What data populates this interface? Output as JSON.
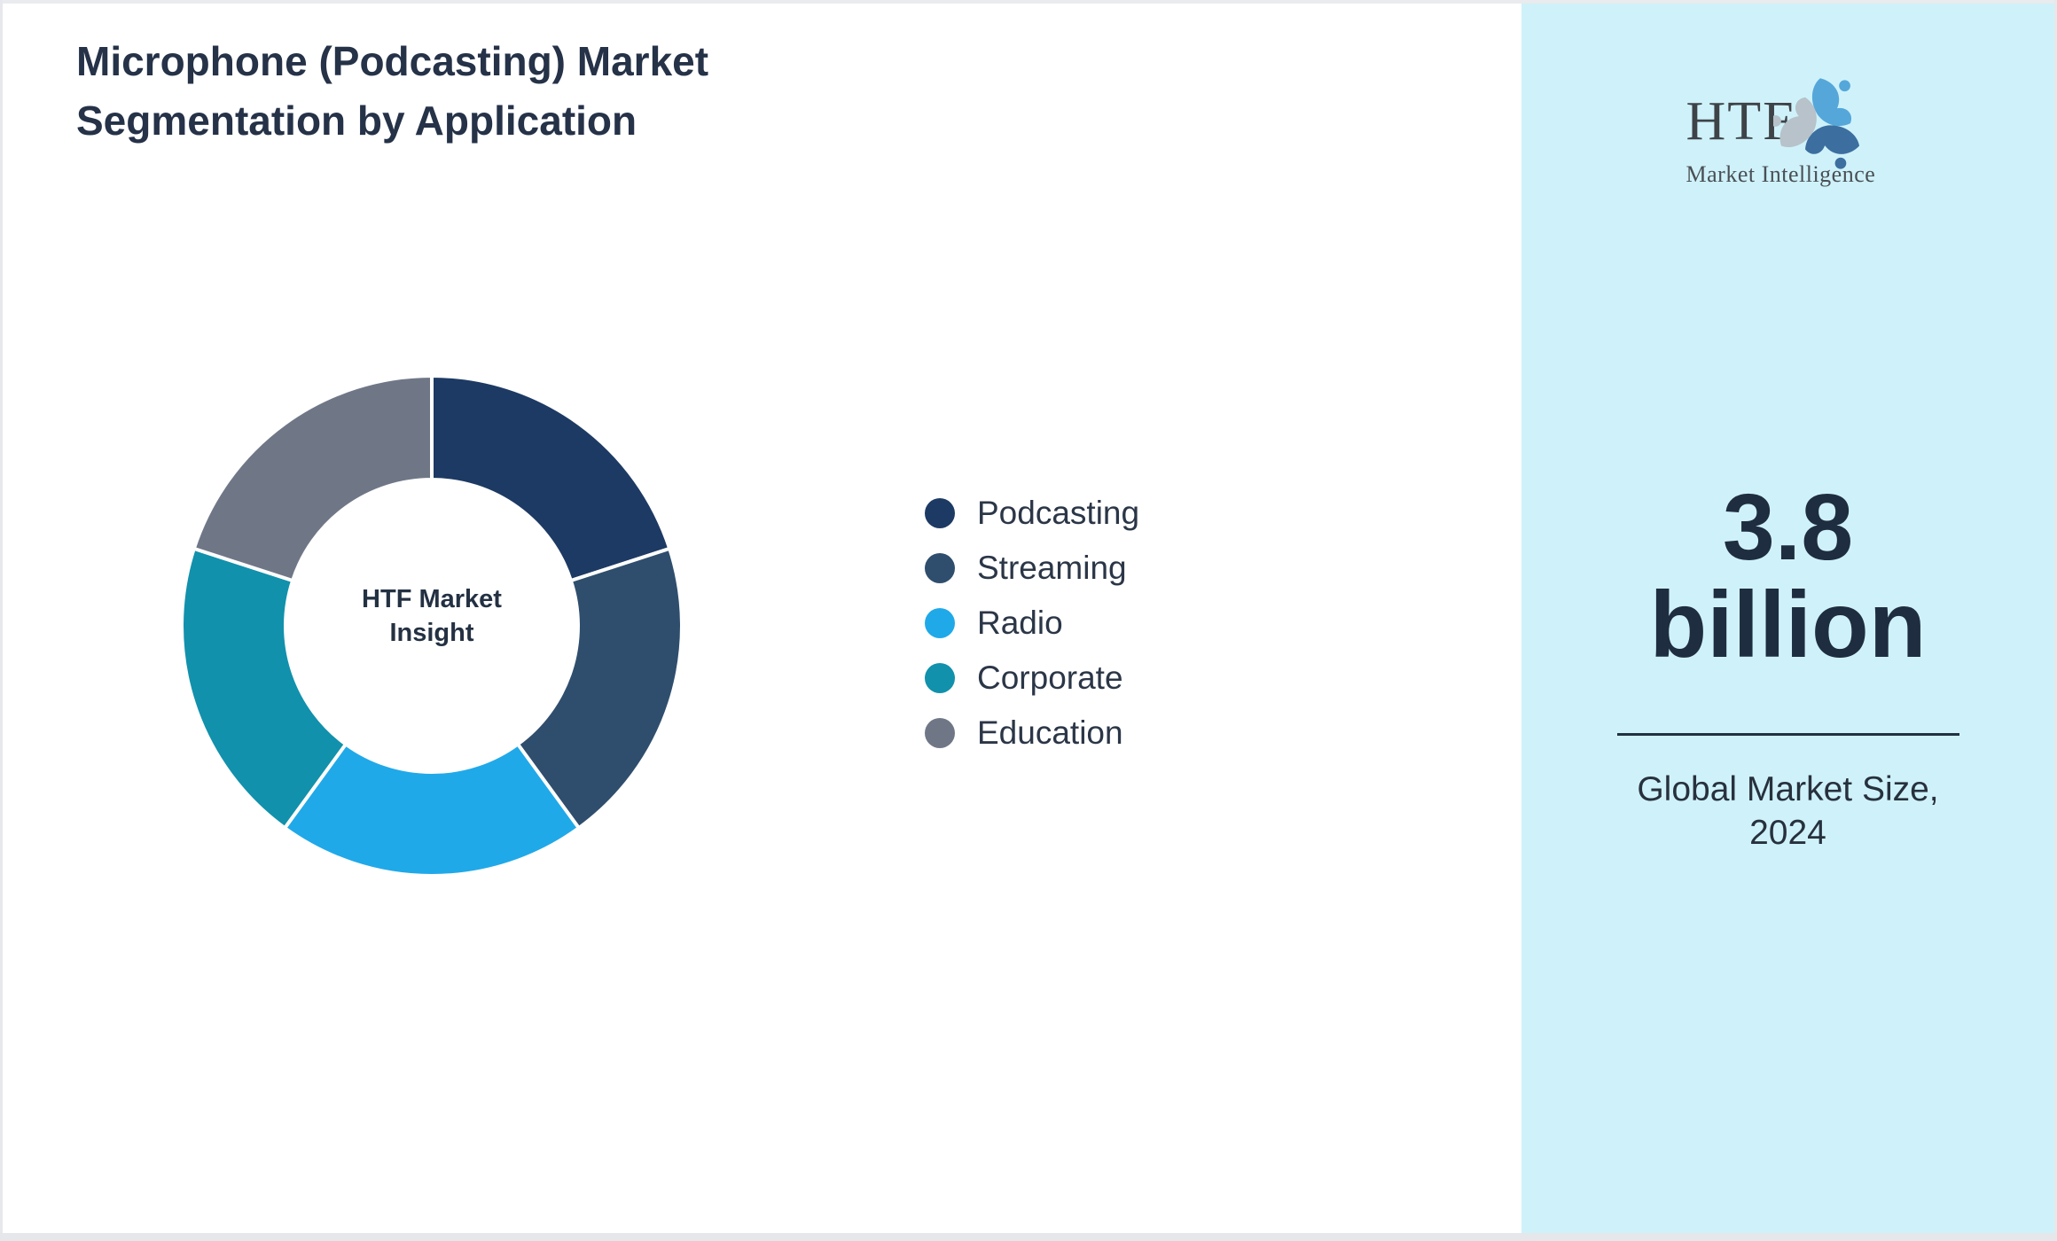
{
  "page": {
    "background": "#ffffff",
    "edge_color": "#e6e8eb",
    "bottom_strip_color": "#e5e7ea"
  },
  "header": {
    "title_line1": "Microphone (Podcasting) Market",
    "title_line2": "Segmentation by Application",
    "title_color": "#253248"
  },
  "chart_data": {
    "type": "pie",
    "subtype": "donut",
    "title": "Microphone (Podcasting) Market Segmentation by Application",
    "center_label": "HTF Market Insight",
    "start_angle_deg": 0,
    "direction": "clockwise",
    "inner_radius_ratio": 0.585,
    "separator_color": "#ffffff",
    "legend_position": "right",
    "segments": [
      {
        "label": "Podcasting",
        "value": 20,
        "color": "#1d3a64"
      },
      {
        "label": "Streaming",
        "value": 20,
        "color": "#2f4e6d"
      },
      {
        "label": "Radio",
        "value": 20,
        "color": "#20a9e9"
      },
      {
        "label": "Corporate",
        "value": 20,
        "color": "#1191ac"
      },
      {
        "label": "Education",
        "value": 20,
        "color": "#6f7787"
      }
    ]
  },
  "sidebar": {
    "background": "#cff2fa",
    "logo": {
      "acronym": "HTF",
      "subtitle": "Market Intelligence",
      "swirl_colors": [
        "#55a7da",
        "#3c6ea0",
        "#b7c2ca"
      ]
    },
    "market_size": "3.8 billion",
    "market_size_color": "#1f2d40",
    "divider_color": "#22303f",
    "caption": "Global Market Size, 2024"
  }
}
